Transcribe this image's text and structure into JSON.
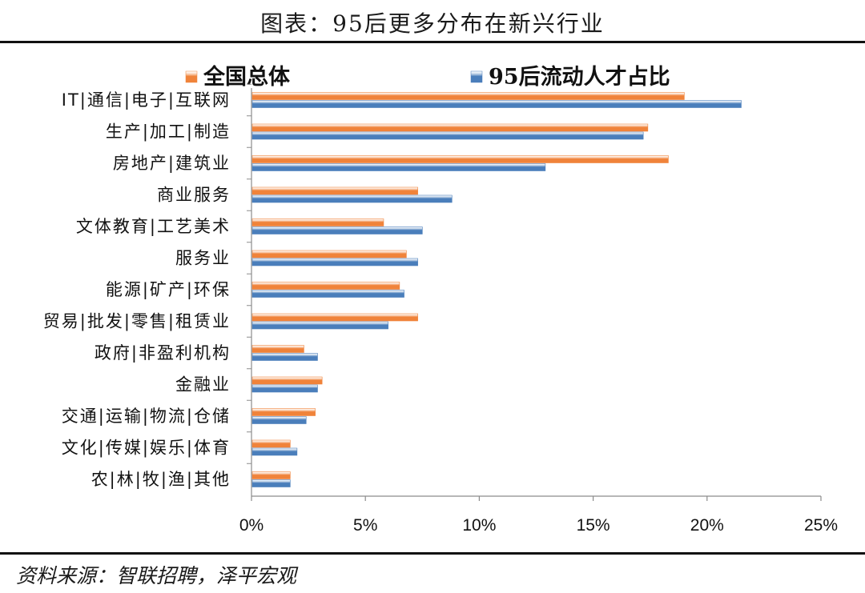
{
  "title": "图表：95后更多分布在新兴行业",
  "source": "资料来源：智联招聘，泽平宏观",
  "colors": {
    "series1": "#f0833a",
    "series2": "#4a7ebb",
    "axis": "#8c8c8c"
  },
  "chart_data": {
    "type": "bar",
    "orientation": "horizontal",
    "categories": [
      "IT|通信|电子|互联网",
      "生产|加工|制造",
      "房地产|建筑业",
      "商业服务",
      "文体教育|工艺美术",
      "服务业",
      "能源|矿产|环保",
      "贸易|批发|零售|租赁业",
      "政府|非盈利机构",
      "金融业",
      "交通|运输|物流|仓储",
      "文化|传媒|娱乐|体育",
      "农|林|牧|渔|其他"
    ],
    "series": [
      {
        "name": "全国总体",
        "values": [
          19.0,
          17.4,
          18.3,
          7.3,
          5.8,
          6.8,
          6.5,
          7.3,
          2.3,
          3.1,
          2.8,
          1.7,
          1.7
        ]
      },
      {
        "name": "95后流动人才占比",
        "values": [
          21.5,
          17.2,
          12.9,
          8.8,
          7.5,
          7.3,
          6.7,
          6.0,
          2.9,
          2.9,
          2.4,
          2.0,
          1.7
        ]
      }
    ],
    "xlim": [
      0,
      25
    ],
    "xticks": [
      "0%",
      "5%",
      "10%",
      "15%",
      "20%",
      "25%"
    ],
    "unit": "%",
    "grid": false,
    "legend_position": "top"
  }
}
